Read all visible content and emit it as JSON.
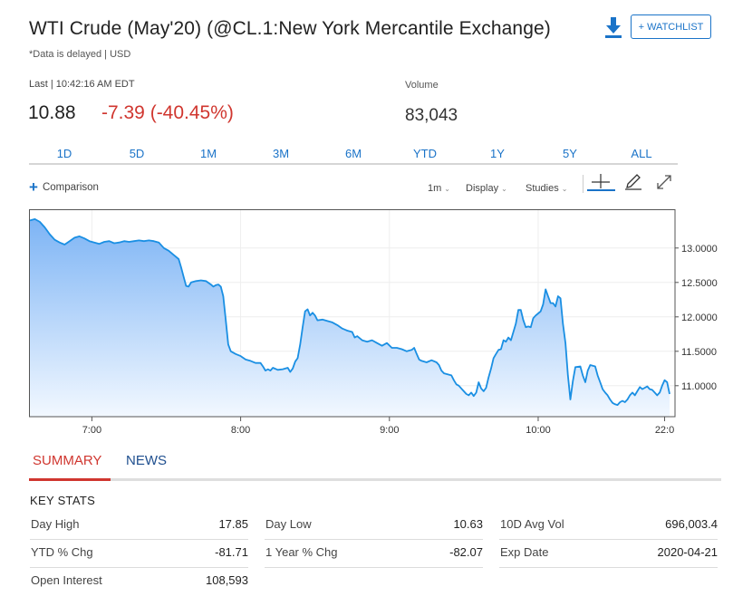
{
  "header": {
    "title": "WTI Crude (May'20) (@CL.1:New York Mercantile Exchange)",
    "subtitle": "*Data is delayed | USD",
    "watchlist_label": "+ WATCHLIST"
  },
  "quote": {
    "last_label": "Last | 10:42:16 AM EDT",
    "last_price": "10.88",
    "change": "-7.39 (-40.45%)",
    "volume_label": "Volume",
    "volume": "83,043"
  },
  "ranges": [
    "1D",
    "5D",
    "1M",
    "3M",
    "6M",
    "YTD",
    "1Y",
    "5Y",
    "ALL"
  ],
  "toolbar": {
    "comparison_label": "Comparison",
    "interval": "1m",
    "display": "Display",
    "studies": "Studies"
  },
  "chart_data": {
    "type": "area",
    "x_ticks": [
      "7:00",
      "8:00",
      "9:00",
      "10:00",
      "22:0"
    ],
    "y_ticks": [
      "13.0000",
      "12.5000",
      "12.0000",
      "11.5000",
      "11.0000"
    ],
    "ylim": [
      10.55,
      13.55
    ],
    "grid": true,
    "points": [
      [
        0,
        13.4
      ],
      [
        2,
        13.42
      ],
      [
        4,
        13.38
      ],
      [
        6,
        13.3
      ],
      [
        8,
        13.2
      ],
      [
        10,
        13.12
      ],
      [
        12,
        13.08
      ],
      [
        14,
        13.05
      ],
      [
        16,
        13.1
      ],
      [
        18,
        13.15
      ],
      [
        20,
        13.17
      ],
      [
        22,
        13.14
      ],
      [
        24,
        13.1
      ],
      [
        26,
        13.08
      ],
      [
        28,
        13.06
      ],
      [
        30,
        13.09
      ],
      [
        32,
        13.1
      ],
      [
        34,
        13.07
      ],
      [
        36,
        13.08
      ],
      [
        38,
        13.1
      ],
      [
        40,
        13.09
      ],
      [
        42,
        13.1
      ],
      [
        44,
        13.11
      ],
      [
        46,
        13.1
      ],
      [
        48,
        13.11
      ],
      [
        50,
        13.1
      ],
      [
        52,
        13.08
      ],
      [
        54,
        13.0
      ],
      [
        56,
        12.96
      ],
      [
        58,
        12.9
      ],
      [
        60,
        12.84
      ],
      [
        61,
        12.72
      ],
      [
        62,
        12.58
      ],
      [
        63,
        12.45
      ],
      [
        64,
        12.44
      ],
      [
        65,
        12.5
      ],
      [
        67,
        12.52
      ],
      [
        69,
        12.53
      ],
      [
        71,
        12.52
      ],
      [
        73,
        12.47
      ],
      [
        74,
        12.44
      ],
      [
        75,
        12.46
      ],
      [
        76,
        12.47
      ],
      [
        77,
        12.44
      ],
      [
        78,
        12.3
      ],
      [
        79,
        11.95
      ],
      [
        80,
        11.6
      ],
      [
        81,
        11.5
      ],
      [
        83,
        11.46
      ],
      [
        85,
        11.43
      ],
      [
        87,
        11.38
      ],
      [
        89,
        11.36
      ],
      [
        91,
        11.33
      ],
      [
        93,
        11.33
      ],
      [
        94,
        11.28
      ],
      [
        95,
        11.22
      ],
      [
        96,
        11.24
      ],
      [
        97,
        11.22
      ],
      [
        98,
        11.26
      ],
      [
        100,
        11.23
      ],
      [
        102,
        11.24
      ],
      [
        104,
        11.26
      ],
      [
        105,
        11.2
      ],
      [
        106,
        11.25
      ],
      [
        107,
        11.35
      ],
      [
        108,
        11.4
      ],
      [
        109,
        11.6
      ],
      [
        110,
        11.85
      ],
      [
        111,
        12.08
      ],
      [
        112,
        12.11
      ],
      [
        113,
        12.02
      ],
      [
        114,
        12.06
      ],
      [
        115,
        12.02
      ],
      [
        116,
        11.95
      ],
      [
        118,
        11.96
      ],
      [
        120,
        11.94
      ],
      [
        122,
        11.92
      ],
      [
        124,
        11.88
      ],
      [
        126,
        11.83
      ],
      [
        128,
        11.8
      ],
      [
        130,
        11.78
      ],
      [
        131,
        11.7
      ],
      [
        132,
        11.72
      ],
      [
        134,
        11.66
      ],
      [
        136,
        11.64
      ],
      [
        138,
        11.66
      ],
      [
        140,
        11.62
      ],
      [
        142,
        11.58
      ],
      [
        144,
        11.62
      ],
      [
        146,
        11.55
      ],
      [
        148,
        11.55
      ],
      [
        150,
        11.53
      ],
      [
        152,
        11.5
      ],
      [
        154,
        11.52
      ],
      [
        155,
        11.55
      ],
      [
        156,
        11.46
      ],
      [
        157,
        11.38
      ],
      [
        158,
        11.36
      ],
      [
        160,
        11.34
      ],
      [
        162,
        11.37
      ],
      [
        164,
        11.34
      ],
      [
        165,
        11.3
      ],
      [
        166,
        11.22
      ],
      [
        167,
        11.18
      ],
      [
        168,
        11.17
      ],
      [
        170,
        11.15
      ],
      [
        171,
        11.08
      ],
      [
        172,
        11.02
      ],
      [
        173,
        11.0
      ],
      [
        174,
        10.96
      ],
      [
        175,
        10.92
      ],
      [
        176,
        10.88
      ],
      [
        177,
        10.86
      ],
      [
        178,
        10.9
      ],
      [
        179,
        10.85
      ],
      [
        180,
        10.9
      ],
      [
        181,
        11.05
      ],
      [
        182,
        10.96
      ],
      [
        183,
        10.92
      ],
      [
        184,
        10.97
      ],
      [
        185,
        11.12
      ],
      [
        186,
        11.25
      ],
      [
        187,
        11.4
      ],
      [
        188,
        11.46
      ],
      [
        189,
        11.52
      ],
      [
        190,
        11.53
      ],
      [
        191,
        11.66
      ],
      [
        192,
        11.64
      ],
      [
        193,
        11.7
      ],
      [
        194,
        11.66
      ],
      [
        195,
        11.78
      ],
      [
        196,
        11.9
      ],
      [
        197,
        12.1
      ],
      [
        198,
        12.1
      ],
      [
        199,
        11.95
      ],
      [
        200,
        11.85
      ],
      [
        201,
        11.86
      ],
      [
        202,
        11.85
      ],
      [
        203,
        11.98
      ],
      [
        204,
        12.02
      ],
      [
        205,
        12.05
      ],
      [
        206,
        12.08
      ],
      [
        207,
        12.18
      ],
      [
        208,
        12.4
      ],
      [
        209,
        12.3
      ],
      [
        210,
        12.2
      ],
      [
        211,
        12.2
      ],
      [
        212,
        12.15
      ],
      [
        213,
        12.3
      ],
      [
        214,
        12.27
      ],
      [
        215,
        11.9
      ],
      [
        216,
        11.62
      ],
      [
        217,
        11.15
      ],
      [
        218,
        10.8
      ],
      [
        219,
        11.07
      ],
      [
        220,
        11.27
      ],
      [
        222,
        11.28
      ],
      [
        223,
        11.15
      ],
      [
        224,
        11.05
      ],
      [
        225,
        11.22
      ],
      [
        226,
        11.3
      ],
      [
        227,
        11.29
      ],
      [
        228,
        11.28
      ],
      [
        229,
        11.15
      ],
      [
        230,
        11.05
      ],
      [
        231,
        10.95
      ],
      [
        232,
        10.9
      ],
      [
        233,
        10.86
      ],
      [
        234,
        10.8
      ],
      [
        235,
        10.75
      ],
      [
        236,
        10.73
      ],
      [
        237,
        10.72
      ],
      [
        238,
        10.76
      ],
      [
        239,
        10.78
      ],
      [
        240,
        10.76
      ],
      [
        241,
        10.8
      ],
      [
        242,
        10.86
      ],
      [
        243,
        10.9
      ],
      [
        244,
        10.86
      ],
      [
        245,
        10.92
      ],
      [
        246,
        10.98
      ],
      [
        247,
        10.95
      ],
      [
        248,
        10.97
      ],
      [
        249,
        10.99
      ],
      [
        250,
        10.95
      ],
      [
        251,
        10.94
      ],
      [
        252,
        10.9
      ],
      [
        253,
        10.86
      ],
      [
        254,
        10.9
      ],
      [
        255,
        11.0
      ],
      [
        256,
        11.08
      ],
      [
        257,
        11.05
      ],
      [
        258,
        10.88
      ]
    ],
    "x_span": [
      0,
      258
    ],
    "x_tick_positions": [
      25,
      85,
      145,
      205,
      256
    ]
  },
  "tabs": {
    "summary": "SUMMARY",
    "news": "NEWS"
  },
  "key_stats": {
    "heading": "KEY STATS",
    "rows": [
      [
        {
          "label": "Day High",
          "value": "17.85"
        },
        {
          "label": "Day Low",
          "value": "10.63"
        },
        {
          "label": "10D Avg Vol",
          "value": "696,003.4"
        }
      ],
      [
        {
          "label": "YTD % Chg",
          "value": "-81.71"
        },
        {
          "label": "1 Year % Chg",
          "value": "-82.07"
        },
        {
          "label": "Exp Date",
          "value": "2020-04-21"
        }
      ],
      [
        {
          "label": "Open Interest",
          "value": "108,593"
        }
      ]
    ]
  },
  "colors": {
    "accent": "#1a73c8",
    "negative": "#d0362f",
    "line": "#1a8fe3",
    "tab_news": "#1f4f8f"
  },
  "icons": {
    "download": "download-icon",
    "comparison": "plus-icon",
    "crosshair": "crosshair-icon",
    "draw": "pencil-icon",
    "expand": "expand-icon"
  }
}
